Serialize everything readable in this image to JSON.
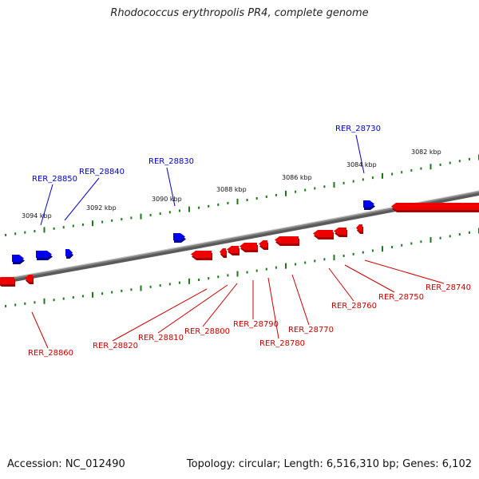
{
  "header": {
    "title": "Rhodococcus erythropolis PR4, complete genome"
  },
  "footer": {
    "accession": "Accession: NC_012490",
    "summary": "Topology: circular; Length: 6,516,310 bp; Genes: 6,102"
  },
  "colors": {
    "forward": "#0000ee",
    "reverse": "#ee0000",
    "backbone": "#808080",
    "tick": "#1a7a1a"
  },
  "scale_labels": [
    "3082 kbp",
    "3084 kbp",
    "3086 kbp",
    "3088 kbp",
    "3090 kbp",
    "3092 kbp",
    "3094 kbp"
  ],
  "genes": {
    "forward": [
      "RER_28730",
      "RER_28830",
      "RER_28840",
      "RER_28850"
    ],
    "reverse": [
      "RER_28740",
      "RER_28750",
      "RER_28760",
      "RER_28770",
      "RER_28780",
      "RER_28790",
      "RER_28800",
      "RER_28810",
      "RER_28820",
      "RER_28860"
    ]
  }
}
